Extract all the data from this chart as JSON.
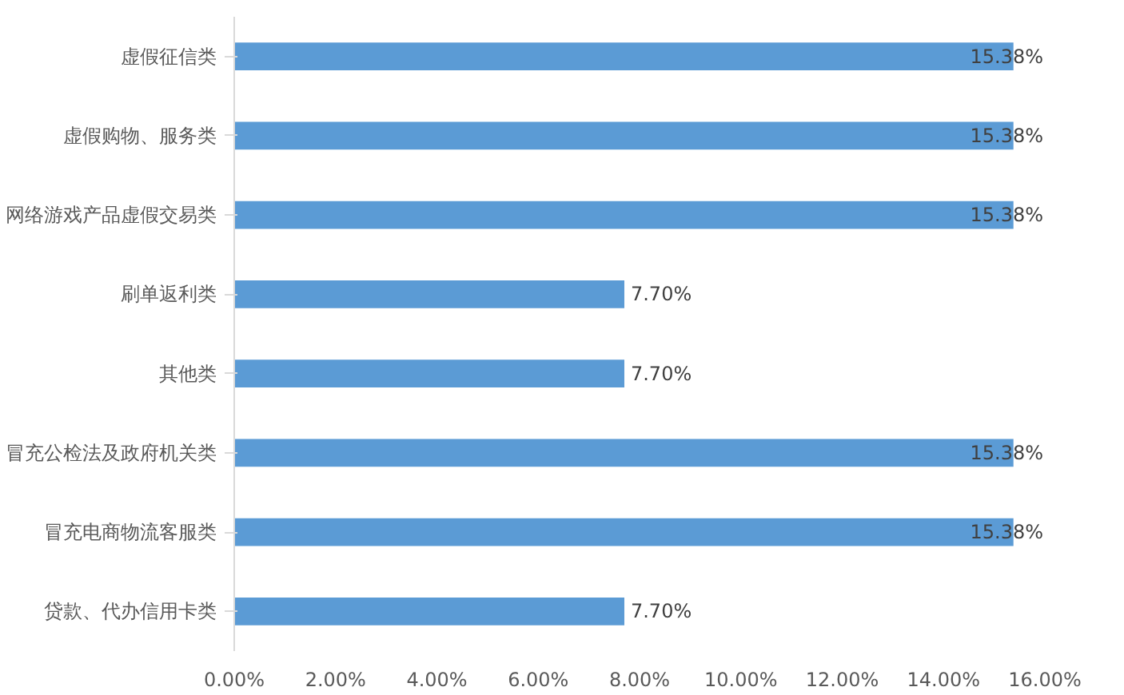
{
  "chart_data": {
    "type": "bar",
    "orientation": "horizontal",
    "categories": [
      "虚假征信类",
      "虚假购物、服务类",
      "网络游戏产品虚假交易类",
      "刷单返利类",
      "其他类",
      "冒充公检法及政府机关类",
      "冒充电商物流客服类",
      "贷款、代办信用卡类"
    ],
    "values": [
      15.38,
      15.38,
      15.38,
      7.7,
      7.7,
      15.38,
      15.38,
      7.7
    ],
    "value_labels": [
      "15.38%",
      "15.38%",
      "15.38%",
      "7.70%",
      "7.70%",
      "15.38%",
      "15.38%",
      "7.70%"
    ],
    "color": "#5b9bd5",
    "xlim": [
      0,
      16
    ],
    "xticks": [
      {
        "value": 0,
        "label": "0.00%"
      },
      {
        "value": 2,
        "label": "2.00%"
      },
      {
        "value": 4,
        "label": "4.00%"
      },
      {
        "value": 6,
        "label": "6.00%"
      },
      {
        "value": 8,
        "label": "8.00%"
      },
      {
        "value": 10,
        "label": "10.00%"
      },
      {
        "value": 12,
        "label": "12.00%"
      },
      {
        "value": 14,
        "label": "14.00%"
      },
      {
        "value": 16,
        "label": "16.00%"
      }
    ],
    "grid": false
  }
}
